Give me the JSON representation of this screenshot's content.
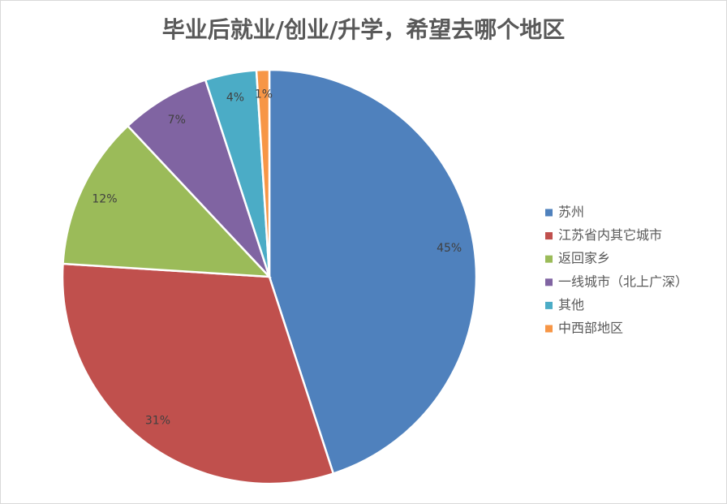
{
  "chart_data": {
    "type": "pie",
    "title": "毕业后就业/创业/升学，希望去哪个地区",
    "categories": [
      "苏州",
      "江苏省内其它城市",
      "返回家乡",
      "一线城市（北上广深）",
      "其他",
      "中西部地区"
    ],
    "values": [
      45,
      31,
      12,
      7,
      4,
      1
    ],
    "value_labels": [
      "45%",
      "31%",
      "12%",
      "7%",
      "4%",
      "1%"
    ],
    "colors": [
      "#4f81bd",
      "#c0504d",
      "#9bbb59",
      "#8064a2",
      "#4bacc6",
      "#f79646"
    ],
    "legend": "right"
  }
}
